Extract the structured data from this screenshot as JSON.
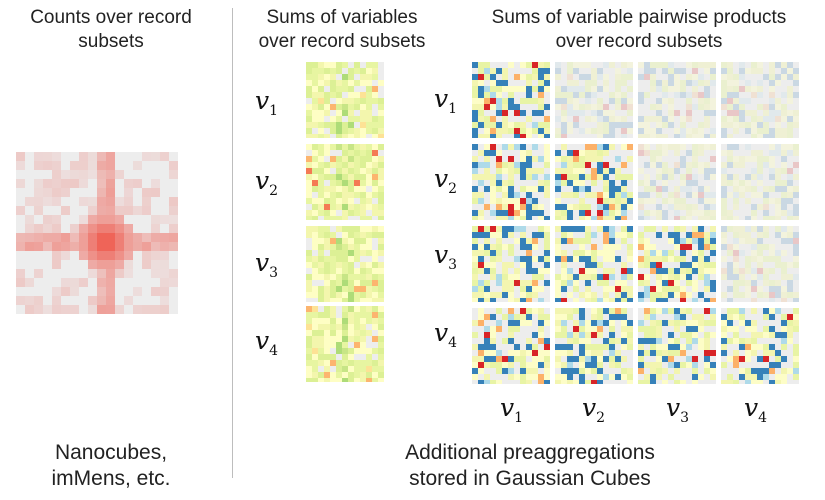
{
  "headers": {
    "counts_line1": "Counts over record",
    "counts_line2": "subsets",
    "sums_line1": "Sums of variables",
    "sums_line2": "over record subsets",
    "products_line1": "Sums of variable pairwise products",
    "products_line2": "over record subsets"
  },
  "variables": [
    {
      "base": "v",
      "sub": "1"
    },
    {
      "base": "v",
      "sub": "2"
    },
    {
      "base": "v",
      "sub": "3"
    },
    {
      "base": "v",
      "sub": "4"
    }
  ],
  "footers": {
    "left_line1": "Nanocubes,",
    "left_line2": "imMens, etc.",
    "right_line1": "Additional preaggregations",
    "right_line2": "stored in Gaussian Cubes"
  },
  "colors": {
    "counts_scale": [
      "#fbe4e4",
      "#ef3b2c"
    ],
    "diverging_negative": "#2c7bb6",
    "diverging_neutral": "#ffffbf",
    "diverging_positive": "#d7191c",
    "panel_background": "#ededed",
    "divider": "#bdbdbd"
  }
}
